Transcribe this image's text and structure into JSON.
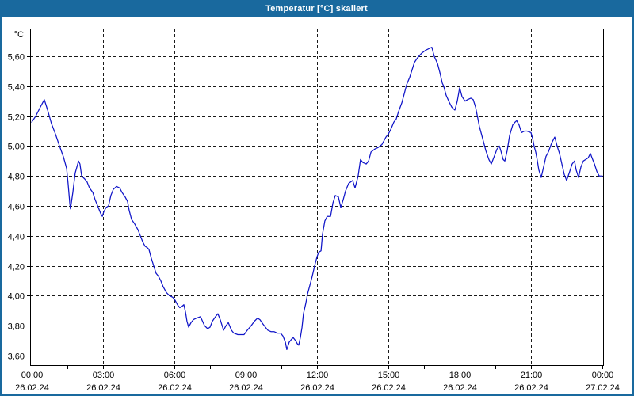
{
  "window": {
    "title": "Temperatur [°C] skaliert"
  },
  "chart_data": {
    "type": "line",
    "title": "Temperatur [°C] skaliert",
    "ylabel": "°C",
    "xlabel": "",
    "ylim": [
      3.54,
      5.785
    ],
    "xlim_hours": [
      0,
      24
    ],
    "grid": "dashed",
    "legend": "none",
    "line_color": "#0f14c8",
    "grid_color": "#1a1a1a",
    "frame_color": "#000000",
    "y_ticks": [
      {
        "value": 5.6,
        "label": "5,60"
      },
      {
        "value": 5.4,
        "label": "5,40"
      },
      {
        "value": 5.2,
        "label": "5,20"
      },
      {
        "value": 5.0,
        "label": "5,00"
      },
      {
        "value": 4.8,
        "label": "4,80"
      },
      {
        "value": 4.6,
        "label": "4,60"
      },
      {
        "value": 4.4,
        "label": "4,40"
      },
      {
        "value": 4.2,
        "label": "4,20"
      },
      {
        "value": 4.0,
        "label": "4,00"
      },
      {
        "value": 3.8,
        "label": "3,80"
      },
      {
        "value": 3.6,
        "label": "3,60"
      }
    ],
    "x_ticks": [
      {
        "hours": 0,
        "time": "00:00",
        "date": "26.02.24"
      },
      {
        "hours": 3,
        "time": "03:00",
        "date": "26.02.24"
      },
      {
        "hours": 6,
        "time": "06:00",
        "date": "26.02.24"
      },
      {
        "hours": 9,
        "time": "09:00",
        "date": "26.02.24"
      },
      {
        "hours": 12,
        "time": "12:00",
        "date": "26.02.24"
      },
      {
        "hours": 15,
        "time": "15:00",
        "date": "26.02.24"
      },
      {
        "hours": 18,
        "time": "18:00",
        "date": "26.02.24"
      },
      {
        "hours": 21,
        "time": "21:00",
        "date": "26.02.24"
      },
      {
        "hours": 24,
        "time": "00:00",
        "date": "27.02.24"
      }
    ],
    "x_minor_tick_step_hours": 1.5,
    "series": [
      {
        "name": "Temperatur",
        "points": [
          [
            0,
            5.16
          ],
          [
            0.17,
            5.2
          ],
          [
            0.33,
            5.25
          ],
          [
            0.53,
            5.31
          ],
          [
            0.67,
            5.24
          ],
          [
            0.83,
            5.15
          ],
          [
            1,
            5.08
          ],
          [
            1.17,
            5
          ],
          [
            1.33,
            4.93
          ],
          [
            1.47,
            4.85
          ],
          [
            1.53,
            4.75
          ],
          [
            1.6,
            4.62
          ],
          [
            1.63,
            4.58
          ],
          [
            1.73,
            4.69
          ],
          [
            1.83,
            4.82
          ],
          [
            1.97,
            4.9
          ],
          [
            2.03,
            4.88
          ],
          [
            2.1,
            4.8
          ],
          [
            2.23,
            4.78
          ],
          [
            2.33,
            4.76
          ],
          [
            2.43,
            4.72
          ],
          [
            2.57,
            4.69
          ],
          [
            2.67,
            4.64
          ],
          [
            2.8,
            4.59
          ],
          [
            2.9,
            4.55
          ],
          [
            2.97,
            4.53
          ],
          [
            3.03,
            4.56
          ],
          [
            3.13,
            4.59
          ],
          [
            3.23,
            4.6
          ],
          [
            3.33,
            4.67
          ],
          [
            3.43,
            4.71
          ],
          [
            3.57,
            4.73
          ],
          [
            3.7,
            4.72
          ],
          [
            3.8,
            4.69
          ],
          [
            3.93,
            4.66
          ],
          [
            4.03,
            4.63
          ],
          [
            4.1,
            4.57
          ],
          [
            4.2,
            4.51
          ],
          [
            4.33,
            4.48
          ],
          [
            4.47,
            4.44
          ],
          [
            4.57,
            4.4
          ],
          [
            4.67,
            4.36
          ],
          [
            4.77,
            4.33
          ],
          [
            4.87,
            4.32
          ],
          [
            4.93,
            4.31
          ],
          [
            5.03,
            4.25
          ],
          [
            5.13,
            4.2
          ],
          [
            5.23,
            4.15
          ],
          [
            5.33,
            4.13
          ],
          [
            5.43,
            4.1
          ],
          [
            5.53,
            4.06
          ],
          [
            5.67,
            4.02
          ],
          [
            5.8,
            4
          ],
          [
            5.93,
            3.99
          ],
          [
            6.03,
            3.97
          ],
          [
            6.13,
            3.94
          ],
          [
            6.23,
            3.92
          ],
          [
            6.33,
            3.93
          ],
          [
            6.4,
            3.94
          ],
          [
            6.47,
            3.89
          ],
          [
            6.53,
            3.83
          ],
          [
            6.6,
            3.79
          ],
          [
            6.7,
            3.82
          ],
          [
            6.8,
            3.84
          ],
          [
            6.93,
            3.85
          ],
          [
            7.1,
            3.86
          ],
          [
            7.27,
            3.8
          ],
          [
            7.4,
            3.78
          ],
          [
            7.5,
            3.79
          ],
          [
            7.6,
            3.83
          ],
          [
            7.73,
            3.86
          ],
          [
            7.83,
            3.88
          ],
          [
            7.93,
            3.84
          ],
          [
            8.07,
            3.77
          ],
          [
            8.17,
            3.8
          ],
          [
            8.27,
            3.82
          ],
          [
            8.4,
            3.77
          ],
          [
            8.5,
            3.75
          ],
          [
            8.67,
            3.74
          ],
          [
            8.93,
            3.74
          ],
          [
            9.07,
            3.77
          ],
          [
            9.23,
            3.8
          ],
          [
            9.37,
            3.83
          ],
          [
            9.5,
            3.85
          ],
          [
            9.6,
            3.84
          ],
          [
            9.73,
            3.81
          ],
          [
            9.83,
            3.79
          ],
          [
            9.93,
            3.77
          ],
          [
            10.07,
            3.76
          ],
          [
            10.2,
            3.76
          ],
          [
            10.33,
            3.75
          ],
          [
            10.47,
            3.75
          ],
          [
            10.57,
            3.73
          ],
          [
            10.67,
            3.69
          ],
          [
            10.73,
            3.64
          ],
          [
            10.83,
            3.69
          ],
          [
            10.93,
            3.71
          ],
          [
            11,
            3.72
          ],
          [
            11.1,
            3.7
          ],
          [
            11.17,
            3.68
          ],
          [
            11.23,
            3.67
          ],
          [
            11.3,
            3.72
          ],
          [
            11.37,
            3.79
          ],
          [
            11.43,
            3.88
          ],
          [
            11.53,
            3.95
          ],
          [
            11.6,
            4.01
          ],
          [
            11.7,
            4.07
          ],
          [
            11.8,
            4.13
          ],
          [
            11.9,
            4.2
          ],
          [
            12,
            4.26
          ],
          [
            12.07,
            4.29
          ],
          [
            12.17,
            4.3
          ],
          [
            12.23,
            4.41
          ],
          [
            12.33,
            4.5
          ],
          [
            12.43,
            4.53
          ],
          [
            12.57,
            4.53
          ],
          [
            12.67,
            4.62
          ],
          [
            12.77,
            4.67
          ],
          [
            12.9,
            4.66
          ],
          [
            13,
            4.59
          ],
          [
            13.1,
            4.64
          ],
          [
            13.2,
            4.7
          ],
          [
            13.33,
            4.75
          ],
          [
            13.5,
            4.77
          ],
          [
            13.6,
            4.72
          ],
          [
            13.73,
            4.8
          ],
          [
            13.83,
            4.91
          ],
          [
            13.93,
            4.89
          ],
          [
            14.07,
            4.88
          ],
          [
            14.17,
            4.9
          ],
          [
            14.27,
            4.96
          ],
          [
            14.43,
            4.98
          ],
          [
            14.57,
            4.99
          ],
          [
            14.73,
            5.01
          ],
          [
            14.9,
            5.06
          ],
          [
            15,
            5.08
          ],
          [
            15.1,
            5.11
          ],
          [
            15.23,
            5.16
          ],
          [
            15.33,
            5.18
          ],
          [
            15.43,
            5.23
          ],
          [
            15.57,
            5.29
          ],
          [
            15.67,
            5.35
          ],
          [
            15.77,
            5.41
          ],
          [
            15.9,
            5.46
          ],
          [
            16,
            5.51
          ],
          [
            16.1,
            5.56
          ],
          [
            16.23,
            5.59
          ],
          [
            16.4,
            5.62
          ],
          [
            16.57,
            5.64
          ],
          [
            16.7,
            5.65
          ],
          [
            16.83,
            5.66
          ],
          [
            16.93,
            5.6
          ],
          [
            17.07,
            5.55
          ],
          [
            17.17,
            5.49
          ],
          [
            17.27,
            5.42
          ],
          [
            17.33,
            5.4
          ],
          [
            17.43,
            5.34
          ],
          [
            17.57,
            5.29
          ],
          [
            17.67,
            5.26
          ],
          [
            17.8,
            5.24
          ],
          [
            17.9,
            5.3
          ],
          [
            18,
            5.39
          ],
          [
            18.1,
            5.33
          ],
          [
            18.23,
            5.3
          ],
          [
            18.33,
            5.31
          ],
          [
            18.47,
            5.32
          ],
          [
            18.57,
            5.31
          ],
          [
            18.67,
            5.26
          ],
          [
            18.77,
            5.18
          ],
          [
            18.83,
            5.13
          ],
          [
            18.9,
            5.09
          ],
          [
            19,
            5.03
          ],
          [
            19.1,
            4.97
          ],
          [
            19.23,
            4.91
          ],
          [
            19.33,
            4.88
          ],
          [
            19.5,
            4.95
          ],
          [
            19.57,
            4.98
          ],
          [
            19.67,
            5
          ],
          [
            19.73,
            4.97
          ],
          [
            19.83,
            4.91
          ],
          [
            19.9,
            4.9
          ],
          [
            20,
            4.97
          ],
          [
            20.1,
            5.07
          ],
          [
            20.23,
            5.14
          ],
          [
            20.33,
            5.16
          ],
          [
            20.4,
            5.17
          ],
          [
            20.5,
            5.14
          ],
          [
            20.6,
            5.09
          ],
          [
            20.73,
            5.1
          ],
          [
            20.83,
            5.1
          ],
          [
            21,
            5.09
          ],
          [
            21.07,
            5.05
          ],
          [
            21.13,
            5
          ],
          [
            21.2,
            4.96
          ],
          [
            21.27,
            4.9
          ],
          [
            21.33,
            4.84
          ],
          [
            21.43,
            4.79
          ],
          [
            21.53,
            4.86
          ],
          [
            21.63,
            4.93
          ],
          [
            21.73,
            4.96
          ],
          [
            21.87,
            5.02
          ],
          [
            22,
            5.06
          ],
          [
            22.1,
            5
          ],
          [
            22.2,
            4.95
          ],
          [
            22.3,
            4.88
          ],
          [
            22.4,
            4.81
          ],
          [
            22.5,
            4.77
          ],
          [
            22.63,
            4.83
          ],
          [
            22.73,
            4.88
          ],
          [
            22.83,
            4.9
          ],
          [
            22.9,
            4.84
          ],
          [
            23,
            4.79
          ],
          [
            23.1,
            4.86
          ],
          [
            23.2,
            4.9
          ],
          [
            23.3,
            4.91
          ],
          [
            23.4,
            4.92
          ],
          [
            23.5,
            4.95
          ],
          [
            23.57,
            4.92
          ],
          [
            23.67,
            4.88
          ],
          [
            23.77,
            4.83
          ],
          [
            23.87,
            4.8
          ],
          [
            24,
            4.8
          ]
        ]
      }
    ]
  }
}
